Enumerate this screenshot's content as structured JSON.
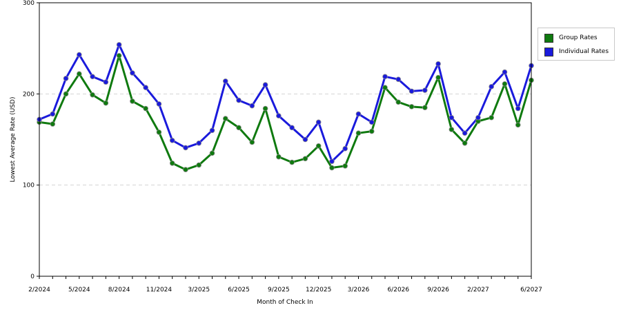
{
  "chart_data": {
    "type": "line",
    "xlabel": "Month of Check In",
    "ylabel": "Lowest Average Rate (USD)",
    "ylim": [
      0,
      300
    ],
    "yticks": [
      0,
      100,
      200,
      300
    ],
    "grid": "horizontal dashed",
    "legend_position": "right",
    "x_tick_labels": [
      "2/2024",
      "5/2024",
      "8/2024",
      "11/2024",
      "3/2025",
      "6/2025",
      "9/2025",
      "12/2025",
      "3/2026",
      "6/2026",
      "9/2026",
      "2/2027",
      "6/2027"
    ],
    "series": [
      {
        "name": "Group Rates",
        "color": "#0f7a0f",
        "values": [
          169,
          167,
          200,
          222,
          199,
          190,
          242,
          192,
          184,
          158,
          124,
          117,
          122,
          135,
          173,
          163,
          147,
          184,
          131,
          125,
          129,
          143,
          119,
          121,
          157,
          159,
          207,
          191,
          186,
          185,
          218,
          161,
          146,
          170,
          174,
          211,
          166,
          215
        ]
      },
      {
        "name": "Individual Rates",
        "color": "#1a1adc",
        "values": [
          172,
          178,
          217,
          243,
          219,
          213,
          254,
          223,
          207,
          189,
          149,
          141,
          146,
          160,
          214,
          193,
          187,
          210,
          176,
          163,
          150,
          169,
          126,
          140,
          178,
          169,
          219,
          216,
          203,
          204,
          233,
          174,
          157,
          174,
          208,
          224,
          184,
          231
        ]
      }
    ]
  }
}
